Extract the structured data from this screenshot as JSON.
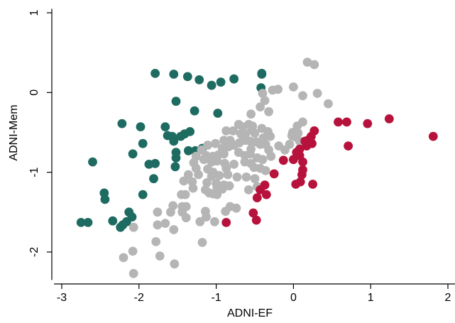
{
  "chart_data": {
    "type": "scatter",
    "xlabel": "ADNI-EF",
    "ylabel": "ADNI-Mem",
    "xlim": [
      -3.1,
      2.1
    ],
    "ylim": [
      -2.35,
      1.05
    ],
    "xticks": [
      {
        "value": -3,
        "label": "-3"
      },
      {
        "value": -2,
        "label": "-2"
      },
      {
        "value": -1,
        "label": "-1"
      },
      {
        "value": 0,
        "label": "0"
      },
      {
        "value": 1,
        "label": "1"
      },
      {
        "value": 2,
        "label": "2"
      }
    ],
    "yticks": [
      {
        "value": -2,
        "label": "-2"
      },
      {
        "value": -1,
        "label": "-1"
      },
      {
        "value": 0,
        "label": "0"
      },
      {
        "value": 1,
        "label": "1"
      }
    ],
    "grid": false,
    "series": [
      {
        "color": "#1e6b61",
        "points": [
          [
            -1.79,
            0.24
          ],
          [
            -1.55,
            0.23
          ],
          [
            -1.37,
            0.2
          ],
          [
            -1.22,
            0.16
          ],
          [
            -1.06,
            0.09
          ],
          [
            -0.94,
            0.13
          ],
          [
            -0.77,
            0.17
          ],
          [
            -0.41,
            0.24
          ],
          [
            -1.52,
            -0.11
          ],
          [
            -1.28,
            -0.23
          ],
          [
            -0.98,
            -0.26
          ],
          [
            -0.42,
            0.06
          ],
          [
            -0.41,
            0.23
          ],
          [
            -2.22,
            -0.39
          ],
          [
            -1.98,
            -0.43
          ],
          [
            -1.66,
            -0.43
          ],
          [
            -1.63,
            -0.54
          ],
          [
            -1.57,
            -0.55
          ],
          [
            -1.46,
            -0.55
          ],
          [
            -1.41,
            -0.52
          ],
          [
            -1.34,
            -0.49
          ],
          [
            -1.55,
            -0.61
          ],
          [
            -1.95,
            -0.64
          ],
          [
            -1.52,
            -0.75
          ],
          [
            -1.36,
            -0.73
          ],
          [
            -1.27,
            -0.73
          ],
          [
            -1.18,
            -0.7
          ],
          [
            -2.08,
            -0.77
          ],
          [
            -1.87,
            -0.9
          ],
          [
            -1.79,
            -0.89
          ],
          [
            -1.52,
            -0.82
          ],
          [
            -1.53,
            -0.93
          ],
          [
            -2.6,
            -0.87
          ],
          [
            -1.81,
            -1.08
          ],
          [
            -1.95,
            -1.28
          ],
          [
            -2.45,
            -1.26
          ],
          [
            -2.44,
            -1.34
          ],
          [
            -2.75,
            -1.63
          ],
          [
            -2.66,
            -1.63
          ],
          [
            -2.34,
            -1.61
          ],
          [
            -2.13,
            -1.5
          ],
          [
            -2.09,
            -1.56
          ],
          [
            -2.16,
            -1.62
          ],
          [
            -2.21,
            -1.66
          ],
          [
            -2.24,
            -1.69
          ]
        ]
      },
      {
        "color": "#b5b5b5",
        "points": [
          [
            0.18,
            0.38
          ],
          [
            0.27,
            0.35
          ],
          [
            0.0,
            0.07
          ],
          [
            -0.27,
            0.03
          ],
          [
            -0.2,
            0.04
          ],
          [
            -0.4,
            -0.01
          ],
          [
            0.12,
            -0.04
          ],
          [
            0.31,
            -0.01
          ],
          [
            0.45,
            -0.14
          ],
          [
            -0.37,
            -0.1
          ],
          [
            -0.43,
            -0.18
          ],
          [
            -0.32,
            -0.24
          ],
          [
            -0.55,
            -0.27
          ],
          [
            0.12,
            -0.37
          ],
          [
            0.05,
            -0.42
          ],
          [
            -0.71,
            -0.4
          ],
          [
            -0.66,
            -0.43
          ],
          [
            -0.58,
            -0.4
          ],
          [
            -0.53,
            -0.42
          ],
          [
            -0.78,
            -0.48
          ],
          [
            -0.87,
            -0.48
          ],
          [
            -0.68,
            -0.52
          ],
          [
            -0.62,
            -0.52
          ],
          [
            -0.54,
            -0.47
          ],
          [
            -0.5,
            -0.51
          ],
          [
            -0.41,
            -0.45
          ],
          [
            -0.33,
            -0.49
          ],
          [
            -0.01,
            -0.5
          ],
          [
            0.06,
            -0.51
          ],
          [
            -0.02,
            -0.54
          ],
          [
            0.03,
            -0.56
          ],
          [
            -0.3,
            -0.55
          ],
          [
            -0.9,
            -0.6
          ],
          [
            -0.82,
            -0.6
          ],
          [
            -0.7,
            -0.63
          ],
          [
            -0.62,
            -0.6
          ],
          [
            -0.56,
            -0.61
          ],
          [
            -0.48,
            -0.62
          ],
          [
            -0.39,
            -0.57
          ],
          [
            -0.05,
            -0.65
          ],
          [
            0.08,
            -0.61
          ],
          [
            0.13,
            -0.62
          ],
          [
            -1.11,
            -0.66
          ],
          [
            -1.01,
            -0.64
          ],
          [
            -0.92,
            -0.7
          ],
          [
            -0.84,
            -0.68
          ],
          [
            -0.77,
            -0.66
          ],
          [
            -0.55,
            -0.71
          ],
          [
            -0.43,
            -0.65
          ],
          [
            -0.36,
            -0.65
          ],
          [
            -0.32,
            -0.72
          ],
          [
            -0.19,
            -0.67
          ],
          [
            -0.11,
            -0.72
          ],
          [
            -1.19,
            -0.72
          ],
          [
            -1.26,
            -0.8
          ],
          [
            -1.13,
            -0.79
          ],
          [
            -1.04,
            -0.8
          ],
          [
            -0.97,
            -0.78
          ],
          [
            -0.9,
            -0.77
          ],
          [
            -0.71,
            -0.75
          ],
          [
            -0.63,
            -0.79
          ],
          [
            -0.56,
            -0.77
          ],
          [
            -0.47,
            -0.82
          ],
          [
            -0.4,
            -0.84
          ],
          [
            -0.29,
            -0.8
          ],
          [
            -1.29,
            -0.88
          ],
          [
            -1.16,
            -0.84
          ],
          [
            -1.06,
            -0.87
          ],
          [
            -0.99,
            -0.86
          ],
          [
            -0.89,
            -0.89
          ],
          [
            -0.77,
            -0.9
          ],
          [
            -0.63,
            -0.87
          ],
          [
            -0.55,
            -0.89
          ],
          [
            -0.51,
            -0.94
          ],
          [
            -0.43,
            -0.95
          ],
          [
            -0.36,
            -0.98
          ],
          [
            -1.26,
            -0.95
          ],
          [
            -1.11,
            -0.96
          ],
          [
            -1.04,
            -1.0
          ],
          [
            -0.87,
            -0.95
          ],
          [
            -1.36,
            -1.03
          ],
          [
            -1.23,
            -1.03
          ],
          [
            -1.06,
            -1.05
          ],
          [
            -0.96,
            -1.04
          ],
          [
            -0.85,
            -1.03
          ],
          [
            -0.73,
            -1.06
          ],
          [
            -0.61,
            -1.06
          ],
          [
            -0.5,
            -1.08
          ],
          [
            -1.42,
            -1.11
          ],
          [
            -1.31,
            -1.12
          ],
          [
            -1.12,
            -1.13
          ],
          [
            -1.0,
            -1.14
          ],
          [
            -0.9,
            -1.16
          ],
          [
            -0.83,
            -1.17
          ],
          [
            -0.47,
            -1.18
          ],
          [
            -1.3,
            -1.2
          ],
          [
            -1.14,
            -1.22
          ],
          [
            -1.09,
            -1.26
          ],
          [
            -0.99,
            -1.19
          ],
          [
            -0.92,
            -1.21
          ],
          [
            -0.58,
            -1.22
          ],
          [
            -1.45,
            -1.28
          ],
          [
            -1.4,
            -1.28
          ],
          [
            -1.04,
            -1.27
          ],
          [
            -0.99,
            -1.28
          ],
          [
            -1.56,
            -1.42
          ],
          [
            -1.44,
            -1.43
          ],
          [
            -1.39,
            -1.43
          ],
          [
            -0.82,
            -1.43
          ],
          [
            -0.74,
            -1.45
          ],
          [
            -1.76,
            -1.5
          ],
          [
            -1.59,
            -1.5
          ],
          [
            -1.44,
            -1.5
          ],
          [
            -1.14,
            -1.49
          ],
          [
            -0.88,
            -1.49
          ],
          [
            -1.13,
            -1.56
          ],
          [
            -1.21,
            -1.62
          ],
          [
            -1.39,
            -1.57
          ],
          [
            -1.02,
            -1.62
          ],
          [
            -1.76,
            -1.66
          ],
          [
            -1.66,
            -1.64
          ],
          [
            -2.07,
            -1.69
          ],
          [
            -1.55,
            -1.72
          ],
          [
            -1.78,
            -1.87
          ],
          [
            -1.18,
            -1.88
          ],
          [
            -2.08,
            -1.99
          ],
          [
            -2.2,
            -2.07
          ],
          [
            -1.73,
            -2.05
          ],
          [
            -1.54,
            -2.15
          ],
          [
            -2.07,
            -2.27
          ]
        ]
      },
      {
        "color": "#b7123c",
        "points": [
          [
            0.58,
            -0.37
          ],
          [
            0.69,
            -0.37
          ],
          [
            0.96,
            -0.39
          ],
          [
            1.24,
            -0.33
          ],
          [
            1.81,
            -0.55
          ],
          [
            0.71,
            -0.67
          ],
          [
            0.27,
            -0.48
          ],
          [
            0.23,
            -0.55
          ],
          [
            0.2,
            -0.59
          ],
          [
            0.15,
            -0.61
          ],
          [
            0.24,
            -0.64
          ],
          [
            0.17,
            -0.67
          ],
          [
            0.08,
            -0.71
          ],
          [
            0.04,
            -0.75
          ],
          [
            0.08,
            -0.79
          ],
          [
            0.12,
            -0.87
          ],
          [
            0.0,
            -0.84
          ],
          [
            -0.13,
            -0.85
          ],
          [
            0.12,
            -0.97
          ],
          [
            0.11,
            -1.03
          ],
          [
            -0.25,
            -1.02
          ],
          [
            0.09,
            -1.12
          ],
          [
            -0.37,
            -1.16
          ],
          [
            0.03,
            -1.15
          ],
          [
            0.25,
            -1.15
          ],
          [
            -0.43,
            -1.22
          ],
          [
            -0.35,
            -1.28
          ],
          [
            -0.47,
            -1.32
          ],
          [
            -0.52,
            -1.51
          ],
          [
            -0.87,
            -1.63
          ],
          [
            -0.48,
            -1.6
          ]
        ]
      }
    ]
  }
}
